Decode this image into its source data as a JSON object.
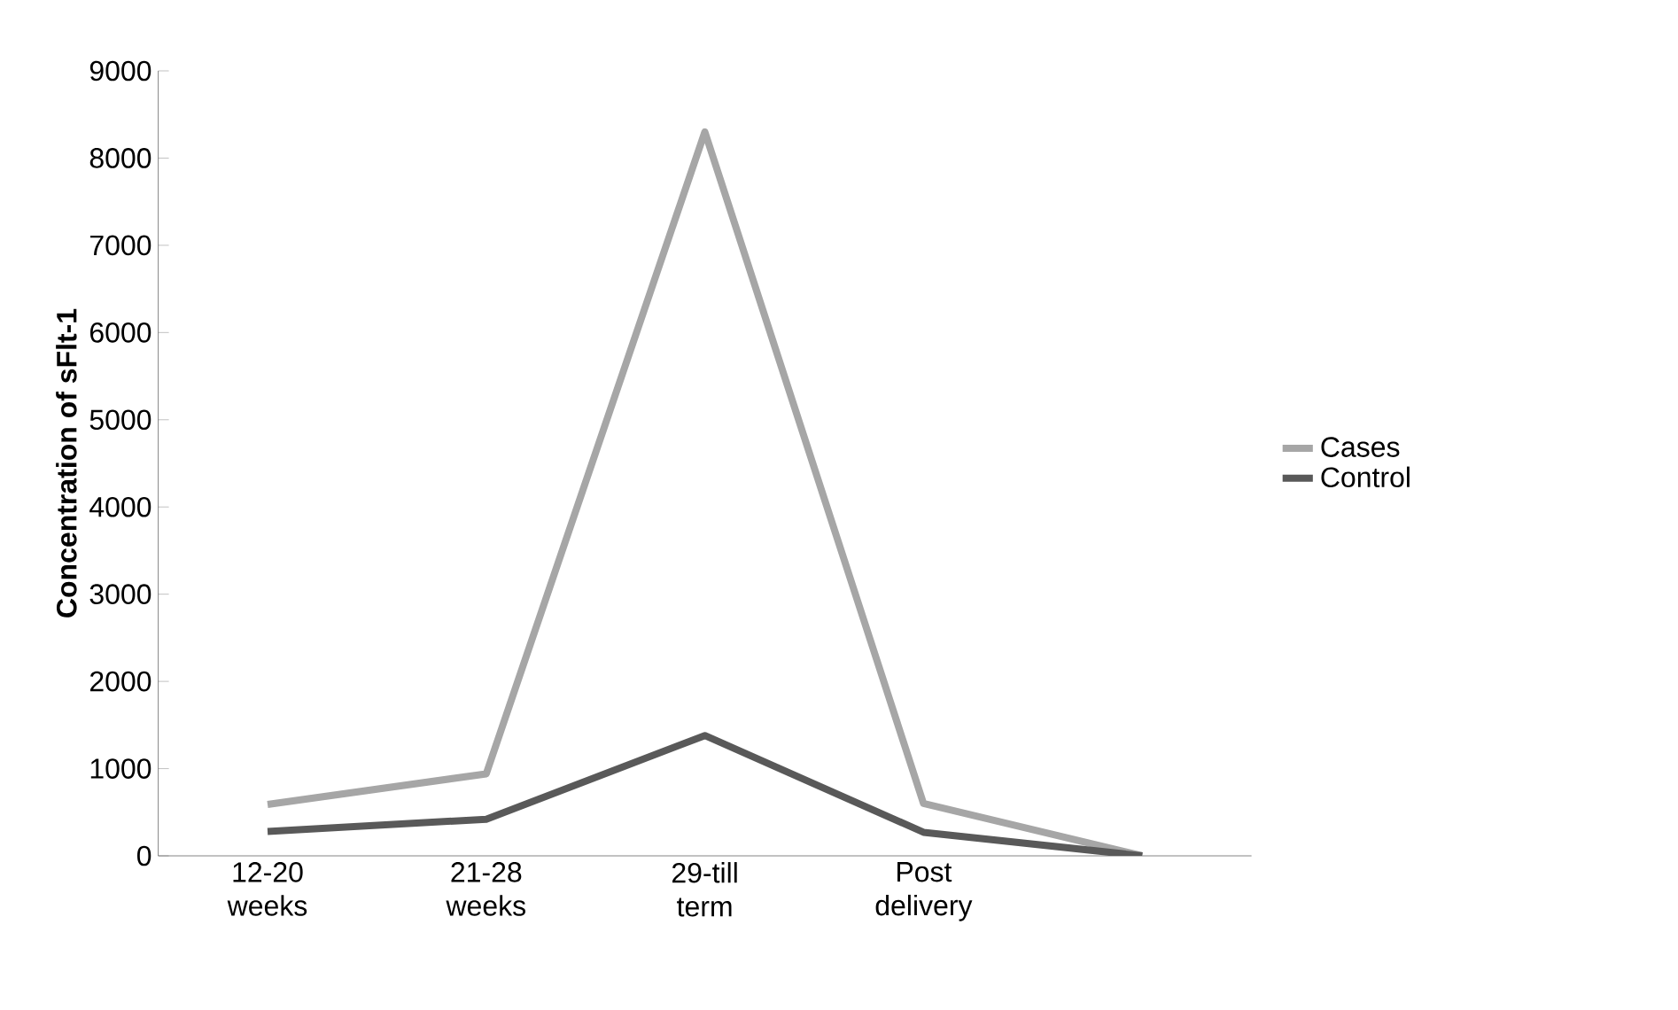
{
  "chart_data": {
    "type": "line",
    "ylabel": "Concentration of sFlt-1",
    "categories": [
      "12-20 weeks",
      "21-28 weeks",
      "29-till term",
      "Post delivery",
      null
    ],
    "series": [
      {
        "name": "Cases",
        "color": "#a6a6a6",
        "values": [
          590,
          940,
          8300,
          600,
          0
        ]
      },
      {
        "name": "Control",
        "color": "#595959",
        "values": [
          280,
          420,
          1380,
          270,
          0
        ]
      }
    ],
    "ylim": [
      0,
      9000
    ],
    "yticks": [
      0,
      1000,
      2000,
      3000,
      4000,
      5000,
      6000,
      7000,
      8000,
      9000
    ],
    "legend": "right",
    "grid": false,
    "marker": "none",
    "line_style": "solid"
  }
}
